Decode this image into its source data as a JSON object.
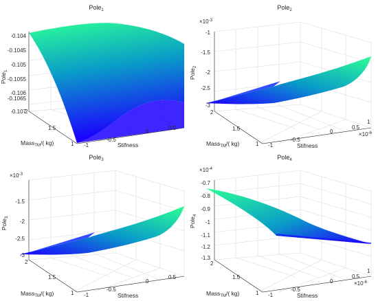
{
  "chart_data": [
    {
      "type": "surface",
      "title": "Pole",
      "title_sub": "1",
      "zlabel": "Pole",
      "zlabel_sub": "1",
      "xlabel": "Stifness",
      "ylabel_pre": "Mass",
      "ylabel_sub": "TM",
      "ylabel_post": "/( kg)",
      "x_ticks": [
        "-1",
        "-0.5",
        "0",
        "0.5"
      ],
      "x_exponent": "",
      "y_ticks": [
        "1",
        "1.5",
        "2"
      ],
      "z_ticks": [
        "-0.104",
        "-0.1045",
        "-0.105",
        "-0.1055",
        "-0.106",
        "-0.1065",
        "-0.107"
      ],
      "z_exponent": "",
      "colormap": [
        "#1b00ff",
        "#00a6c4",
        "#2cff96"
      ],
      "series": [
        {
          "stiffness": -1,
          "mass": [
            1,
            1.25,
            1.5,
            1.75,
            2
          ],
          "pole": [
            -0.1071,
            -0.1061,
            -0.1052,
            -0.1045,
            -0.104
          ]
        },
        {
          "stiffness": 0.8,
          "mass": [
            1,
            1.25,
            1.5,
            1.75,
            2
          ],
          "pole": [
            -0.1071,
            -0.1061,
            -0.1052,
            -0.1045,
            -0.104
          ]
        }
      ]
    },
    {
      "type": "surface",
      "title": "Pole",
      "title_sub": "2",
      "zlabel": "Pole",
      "zlabel_sub": "2",
      "xlabel": "Stifness",
      "ylabel_pre": "Mass",
      "ylabel_sub": "TM",
      "ylabel_post": "/( kg)",
      "x_ticks": [
        "-1",
        "-0.5",
        "0",
        "0.5",
        "1"
      ],
      "x_exponent": "×10",
      "x_exponent_power": "-6",
      "y_ticks": [
        "1",
        "1.5",
        "2"
      ],
      "z_ticks": [
        "-1",
        "-1.5",
        "-2",
        "-2.5",
        "-3"
      ],
      "z_exponent": "×10",
      "z_exponent_power": "-3",
      "colormap": [
        "#1b00ff",
        "#00a6c4",
        "#2cff96"
      ],
      "series": [
        {
          "stiffness": -1,
          "mass": [
            1,
            1.5,
            2
          ],
          "pole": [
            -2.98,
            -2.95,
            -2.9
          ]
        },
        {
          "stiffness": 1,
          "mass": [
            1,
            1.5,
            2
          ],
          "pole": [
            -1.85,
            -1.78,
            -1.7
          ]
        }
      ]
    },
    {
      "type": "surface",
      "title": "Pole",
      "title_sub": "3",
      "zlabel": "Pole",
      "zlabel_sub": "3",
      "xlabel": "Stifness",
      "ylabel_pre": "Mass",
      "ylabel_sub": "TM",
      "ylabel_post": "/( kg)",
      "x_ticks": [
        "-1",
        "-0.5",
        "0",
        "0.5"
      ],
      "x_exponent": "",
      "y_ticks": [
        "1",
        "1.5",
        "2"
      ],
      "z_ticks": [
        "-1.5",
        "-2",
        "-2.5",
        "-3"
      ],
      "z_exponent": "×10",
      "z_exponent_power": "-3",
      "colormap": [
        "#1b00ff",
        "#00a6c4",
        "#2cff96"
      ],
      "series": [
        {
          "stiffness": -1,
          "mass": [
            1,
            1.5,
            2
          ],
          "pole": [
            -2.98,
            -2.95,
            -2.9
          ]
        },
        {
          "stiffness": 0.8,
          "mass": [
            1,
            1.5,
            2
          ],
          "pole": [
            -1.85,
            -1.78,
            -1.7
          ]
        }
      ]
    },
    {
      "type": "surface",
      "title": "Pole",
      "title_sub": "4",
      "zlabel": "Pole",
      "zlabel_sub": "4",
      "xlabel": "Stifness",
      "ylabel_pre": "Mass",
      "ylabel_sub": "TM",
      "ylabel_post": "/( kg)",
      "x_ticks": [
        "-1",
        "-0.5",
        "0",
        "0.5",
        "1"
      ],
      "x_exponent": "×10",
      "x_exponent_power": "-6",
      "y_ticks": [
        "1",
        "1.5",
        "2"
      ],
      "z_ticks": [
        "-0.7",
        "-0.8",
        "-0.9",
        "-1",
        "-1.1",
        "-1.2",
        "-1.3"
      ],
      "z_exponent": "×10",
      "z_exponent_power": "-4",
      "colormap": [
        "#1b00ff",
        "#00a6c4",
        "#2cff96"
      ],
      "series": [
        {
          "stiffness": -1,
          "mass": [
            1,
            1.5,
            2
          ],
          "pole": [
            -1.2,
            -1.12,
            -0.73
          ]
        },
        {
          "stiffness": 1,
          "mass": [
            1,
            1.5,
            2
          ],
          "pole": [
            -1.22,
            -1.2,
            -1.18
          ]
        }
      ]
    }
  ]
}
